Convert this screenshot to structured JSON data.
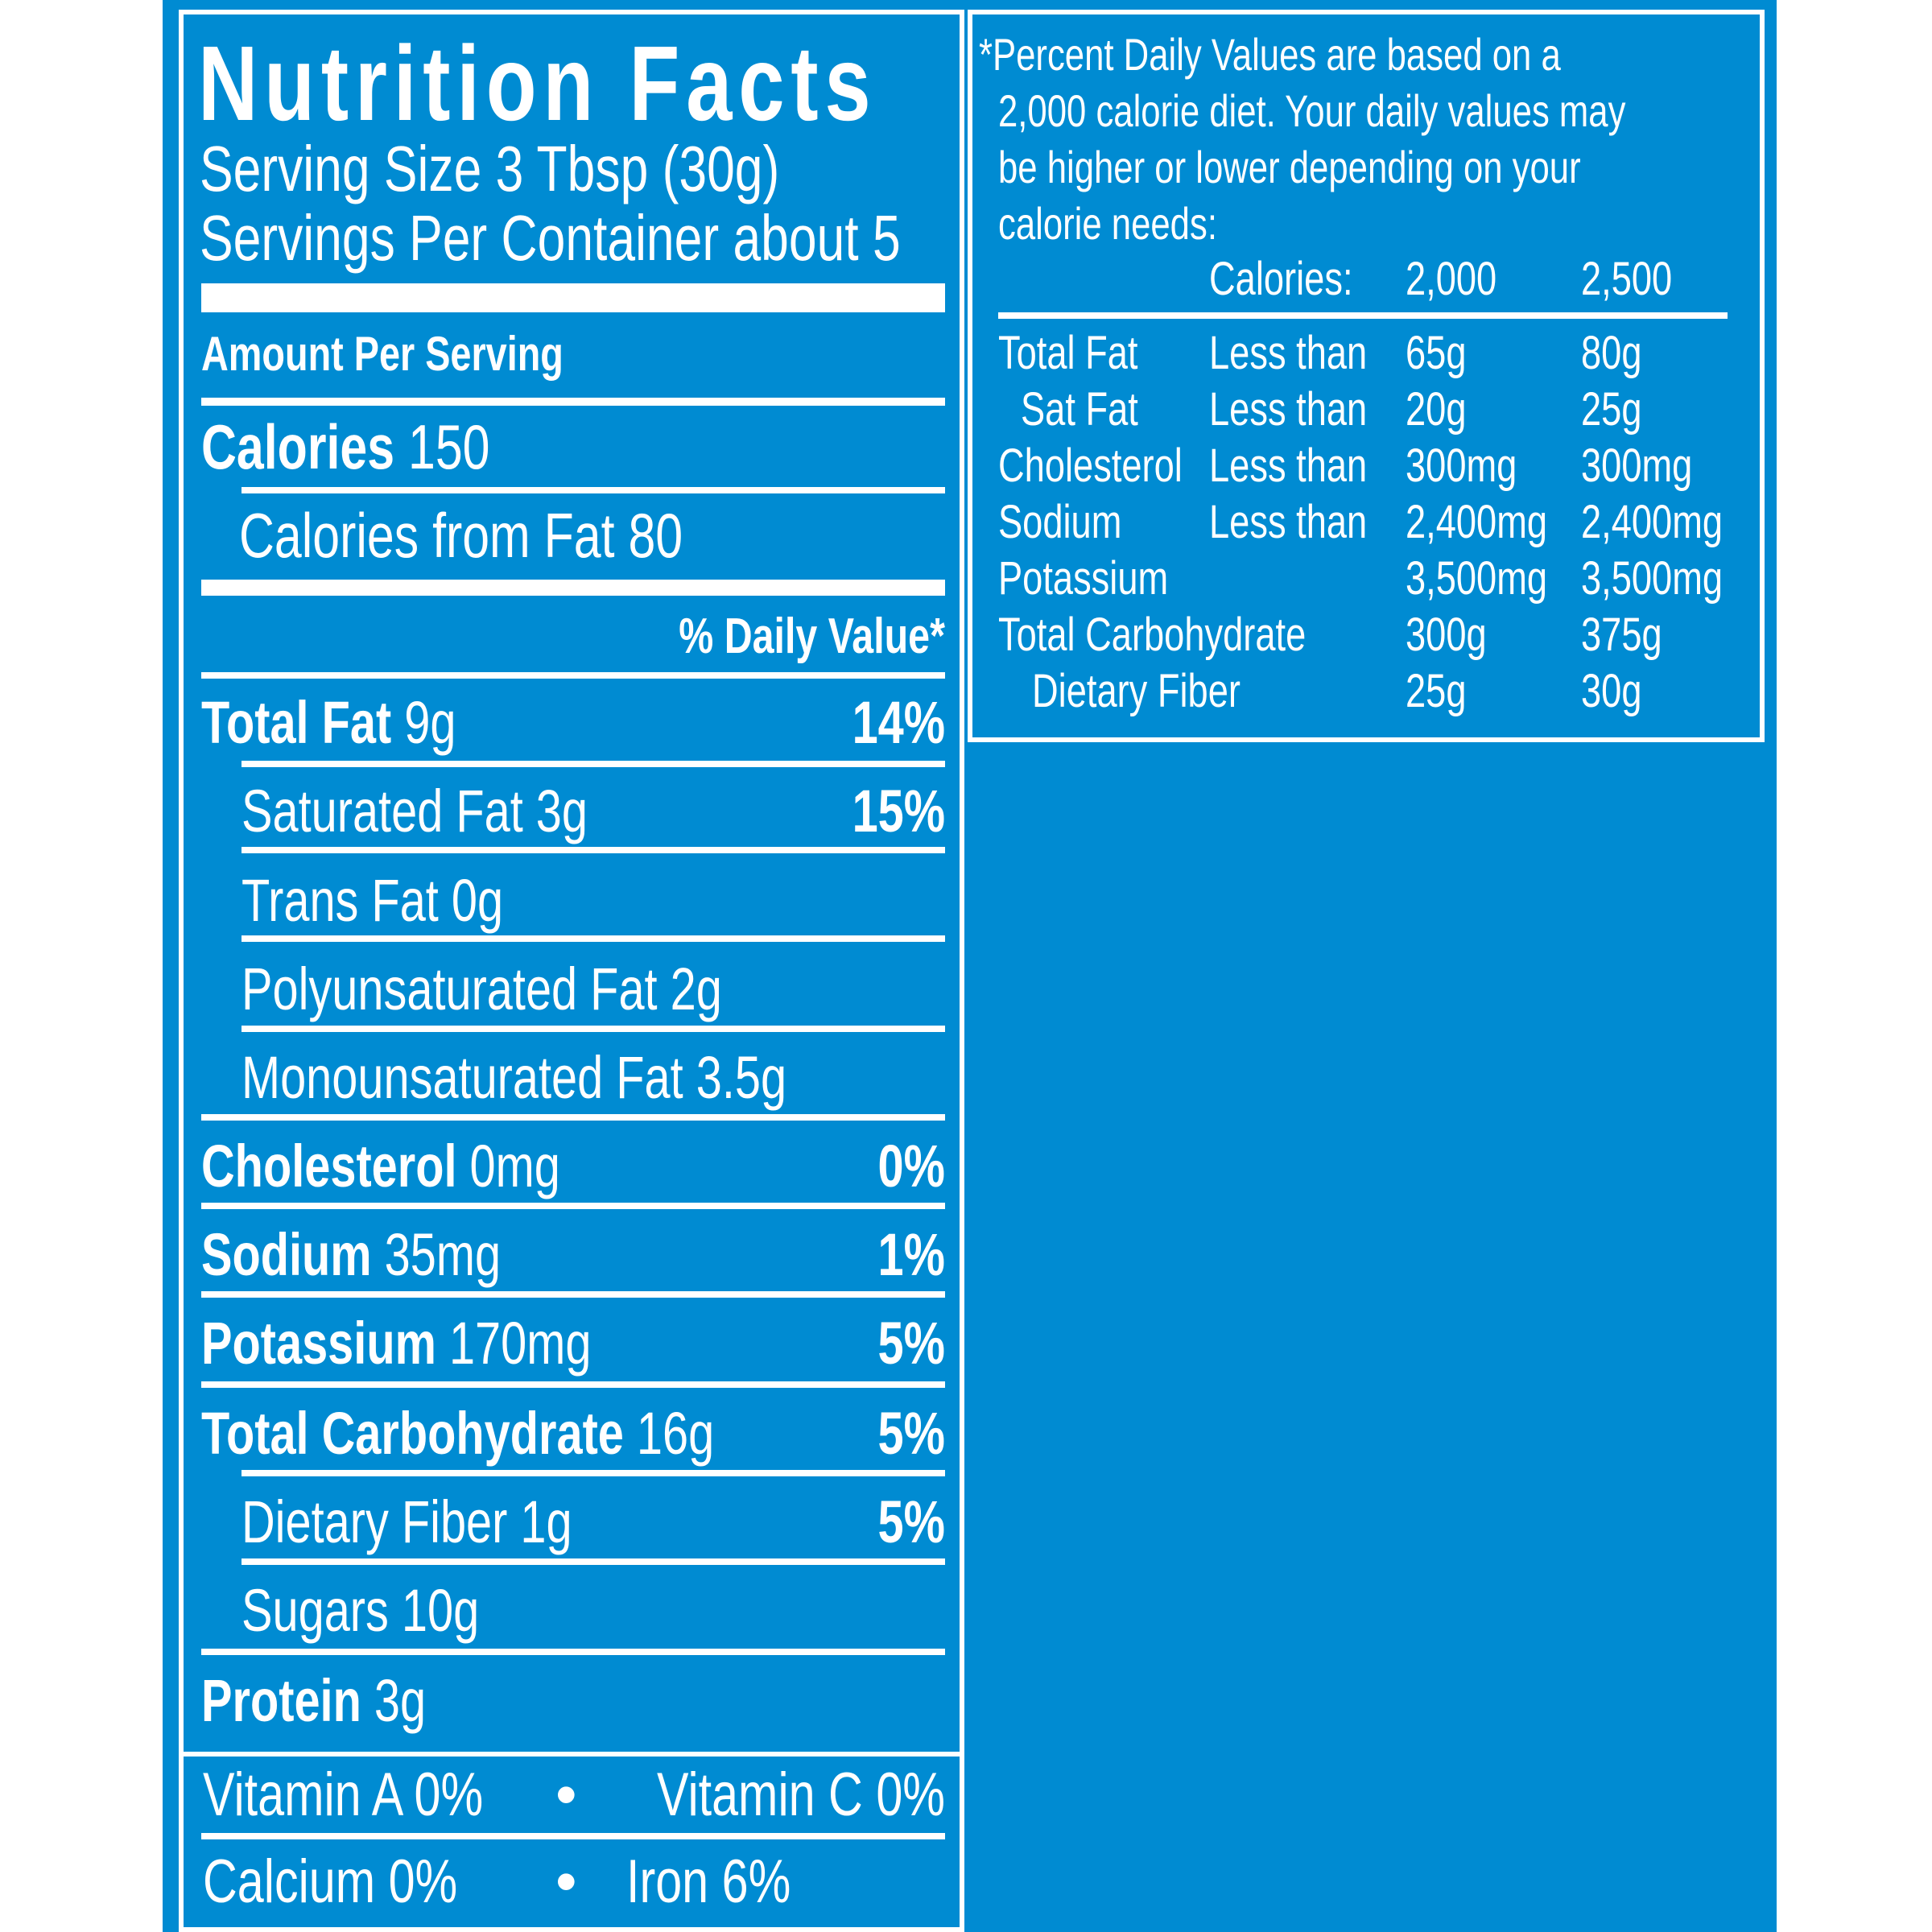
{
  "colors": {
    "background": "#008bd2",
    "text": "#ffffff"
  },
  "label": {
    "title": "Nutrition Facts",
    "serving_size": "Serving Size 3 Tbsp (30g)",
    "servings_per_container": "Servings Per Container about 5",
    "amount_per_serving": "Amount Per Serving",
    "calories_label": "Calories",
    "calories_value": "150",
    "calories_from_fat": "Calories from Fat 80",
    "daily_value_header": "% Daily Value*",
    "nutrients": [
      {
        "name": "Total Fat",
        "amount": "9g",
        "dv": "14%"
      },
      {
        "name": "Saturated Fat 3g",
        "dv": "15%"
      },
      {
        "name": "Trans Fat 0g"
      },
      {
        "name": "Polyunsaturated Fat 2g"
      },
      {
        "name": "Monounsaturated Fat 3.5g"
      },
      {
        "name": "Cholesterol",
        "amount": "0mg",
        "dv": "0%"
      },
      {
        "name": "Sodium",
        "amount": "35mg",
        "dv": "1%"
      },
      {
        "name": "Potassium",
        "amount": "170mg",
        "dv": "5%"
      },
      {
        "name": "Total Carbohydrate",
        "amount": "16g",
        "dv": "5%"
      },
      {
        "name": "Dietary Fiber 1g",
        "dv": "5%"
      },
      {
        "name": "Sugars 10g"
      },
      {
        "name": "Protein",
        "amount": "3g"
      }
    ],
    "vitamins": {
      "vitamin_a": "Vitamin A 0%",
      "vitamin_c": "Vitamin C 0%",
      "calcium": "Calcium 0%",
      "iron": "Iron 6%",
      "separator": "•"
    }
  },
  "footnote": {
    "lines": [
      "*Percent Daily Values are based on a",
      "2,000 calorie diet. Your daily values may",
      "be higher or lower depending on your",
      "calorie needs:"
    ],
    "calories_label": "Calories:",
    "col1": "2,000",
    "col2": "2,500",
    "rows": [
      {
        "name": "Total Fat",
        "qual": "Less than",
        "v1": "65g",
        "v2": "80g"
      },
      {
        "name": "Sat Fat",
        "qual": "Less than",
        "v1": "20g",
        "v2": "25g"
      },
      {
        "name": "Cholesterol",
        "qual": "Less than",
        "v1": "300mg",
        "v2": "300mg"
      },
      {
        "name": "Sodium",
        "qual": "Less than",
        "v1": "2,400mg",
        "v2": "2,400mg"
      },
      {
        "name": "Potassium",
        "qual": "",
        "v1": "3,500mg",
        "v2": "3,500mg"
      },
      {
        "name": "Total Carbohydrate",
        "qual": "",
        "v1": "300g",
        "v2": "375g"
      },
      {
        "name": "Dietary Fiber",
        "qual": "",
        "v1": "25g",
        "v2": "30g"
      }
    ]
  }
}
